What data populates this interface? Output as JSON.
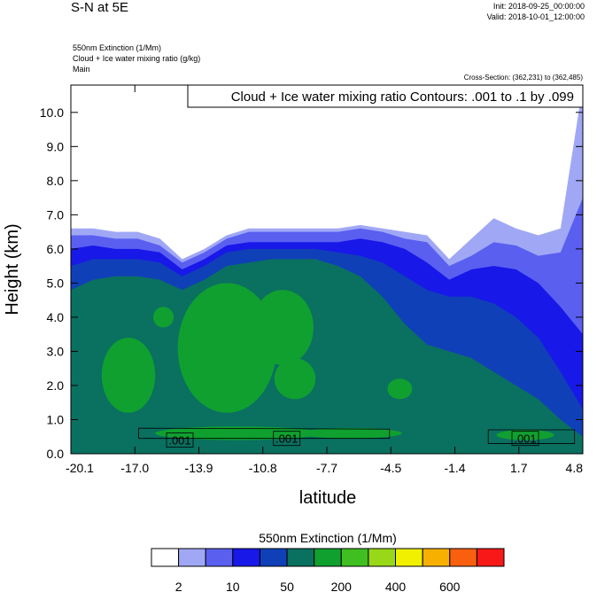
{
  "header": {
    "title": "S-N at 5E",
    "init": "Init: 2018-09-25_00:00:00",
    "valid": "Valid: 2018-10-01_12:00:00",
    "fields": [
      "550nm Extinction   (1/Mm)",
      "Cloud + Ice water mixing ratio   (g/kg)",
      "Main"
    ],
    "cross_section": "Cross-Section: (362,231) to (362,485)"
  },
  "chart_data": {
    "type": "heatmap",
    "title": "S-N at 5E",
    "xlabel": "latitude",
    "ylabel": "Height (km)",
    "xlim": [
      -20.1,
      4.8
    ],
    "ylim": [
      0.0,
      10.8
    ],
    "x_ticks": [
      "-20.1",
      "-17.0",
      "-13.9",
      "-10.8",
      "-7.7",
      "-4.5",
      "-1.4",
      "1.7",
      "4.8"
    ],
    "y_ticks": [
      "0.0",
      "1.0",
      "2.0",
      "3.0",
      "4.0",
      "5.0",
      "6.0",
      "7.0",
      "8.0",
      "9.0",
      "10.0"
    ],
    "contour_info": "Cloud + Ice water mixing ratio Contours: .001 to .1 by .099",
    "contour_labels": [
      {
        "text": ".001",
        "lat": -14.8,
        "height": 0.4
      },
      {
        "text": ".001",
        "lat": -9.6,
        "height": 0.45
      },
      {
        "text": ".001",
        "lat": 2.0,
        "height": 0.45
      }
    ],
    "colorbar": {
      "title": "550nm Extinction  (1/Mm)",
      "labels": [
        "2",
        "10",
        "50",
        "200",
        "400",
        "600"
      ],
      "colors": [
        "#ffffff",
        "#a0a8f5",
        "#5a5ff0",
        "#1818e8",
        "#1040b8",
        "#0a7060",
        "#10a030",
        "#40c020",
        "#98d818",
        "#f0f000",
        "#f8b000",
        "#f86010",
        "#f81818"
      ]
    },
    "levels": {
      "L1": {
        "color": "#a0a8f5",
        "top_km": [
          6.6,
          6.6,
          6.5,
          6.5,
          6.3,
          5.7,
          6.0,
          6.4,
          6.6,
          6.6,
          6.6,
          6.6,
          6.6,
          6.7,
          6.6,
          6.5,
          6.4,
          5.7,
          6.3,
          6.9,
          6.6,
          6.4,
          6.6,
          10.8
        ]
      },
      "L2": {
        "color": "#5a5ff0",
        "top_km": [
          6.4,
          6.4,
          6.3,
          6.3,
          6.1,
          5.6,
          5.9,
          6.3,
          6.5,
          6.5,
          6.5,
          6.5,
          6.5,
          6.6,
          6.5,
          6.3,
          6.2,
          5.5,
          5.8,
          6.2,
          6.1,
          5.8,
          5.9,
          7.5
        ]
      },
      "L3": {
        "color": "#1818e8",
        "top_km": [
          6.0,
          6.1,
          6.0,
          6.0,
          5.9,
          5.4,
          5.7,
          6.1,
          6.2,
          6.2,
          6.2,
          6.2,
          6.2,
          6.3,
          6.2,
          6.0,
          5.6,
          5.1,
          5.4,
          5.5,
          5.4,
          5.0,
          4.3,
          3.5
        ]
      },
      "L4": {
        "color": "#1040b8",
        "top_km": [
          5.5,
          5.7,
          5.7,
          5.7,
          5.6,
          5.2,
          5.5,
          5.9,
          6.0,
          6.0,
          6.0,
          6.0,
          5.9,
          5.8,
          5.6,
          5.2,
          4.8,
          4.6,
          4.6,
          4.4,
          4.0,
          3.4,
          2.4,
          1.3
        ]
      },
      "L5": {
        "color": "#0a7060",
        "top_km": [
          4.8,
          5.1,
          5.2,
          5.2,
          5.1,
          4.8,
          5.1,
          5.5,
          5.6,
          5.7,
          5.7,
          5.7,
          5.5,
          5.2,
          4.6,
          3.8,
          3.2,
          3.0,
          2.8,
          2.4,
          2.0,
          1.6,
          1.0,
          0.5
        ]
      }
    },
    "green_patches": [
      {
        "lat": -17.3,
        "height": 2.3,
        "rlat": 1.3,
        "rh": 1.1
      },
      {
        "lat": -12.5,
        "height": 3.1,
        "rlat": 2.4,
        "rh": 1.9
      },
      {
        "lat": -9.8,
        "height": 3.7,
        "rlat": 1.5,
        "rh": 1.1
      },
      {
        "lat": -9.2,
        "height": 2.2,
        "rlat": 1.0,
        "rh": 0.6
      },
      {
        "lat": -15.6,
        "height": 4.0,
        "rlat": 0.5,
        "rh": 0.3
      },
      {
        "lat": -4.1,
        "height": 1.9,
        "rlat": 0.6,
        "rh": 0.3
      },
      {
        "lat": -12.0,
        "height": 0.6,
        "rlat": 4.0,
        "rh": 0.2
      },
      {
        "lat": -6.5,
        "height": 0.6,
        "rlat": 2.5,
        "rh": 0.15
      },
      {
        "lat": 2.0,
        "height": 0.55,
        "rlat": 1.4,
        "rh": 0.15
      }
    ]
  }
}
